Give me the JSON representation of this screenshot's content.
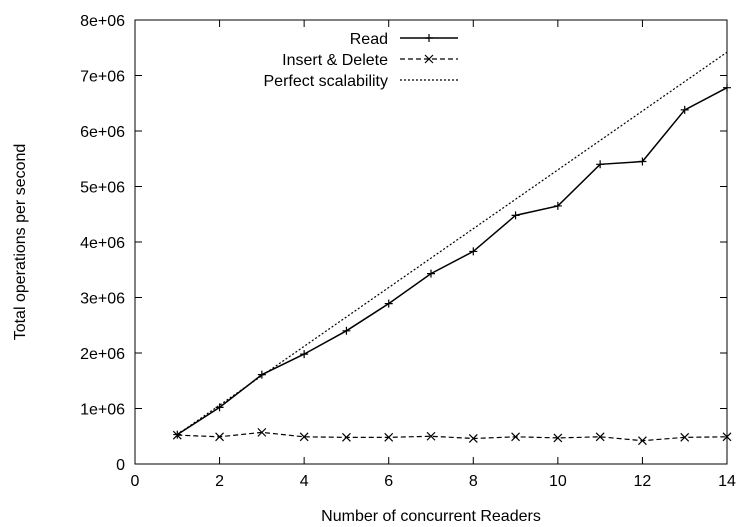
{
  "chart_data": {
    "type": "line",
    "title": "",
    "xlabel": "Number of concurrent Readers",
    "ylabel": "Total operations per second",
    "xlim": [
      0,
      14
    ],
    "ylim": [
      0,
      8000000
    ],
    "xticks": [
      0,
      2,
      4,
      6,
      8,
      10,
      12,
      14
    ],
    "xtick_labels": [
      "0",
      "2",
      "4",
      "6",
      "8",
      "10",
      "12",
      "14"
    ],
    "yticks": [
      0,
      1000000,
      2000000,
      3000000,
      4000000,
      5000000,
      6000000,
      7000000,
      8000000
    ],
    "ytick_labels": [
      "0",
      "1e+06",
      "2e+06",
      "3e+06",
      "4e+06",
      "5e+06",
      "6e+06",
      "7e+06",
      "8e+06"
    ],
    "grid": false,
    "legend_position": "top-left",
    "series": [
      {
        "name": "Read",
        "style": "solid",
        "marker": "plus",
        "color": "#000000",
        "x": [
          1,
          2,
          3,
          4,
          5,
          6,
          7,
          8,
          9,
          10,
          11,
          12,
          13,
          14
        ],
        "values": [
          530000,
          1020000,
          1610000,
          1980000,
          2400000,
          2890000,
          3430000,
          3830000,
          4480000,
          4650000,
          5400000,
          5450000,
          6380000,
          6780000
        ]
      },
      {
        "name": "Insert & Delete",
        "style": "dashed",
        "marker": "x",
        "color": "#000000",
        "x": [
          1,
          2,
          3,
          4,
          5,
          6,
          7,
          8,
          9,
          10,
          11,
          12,
          13,
          14
        ],
        "values": [
          520000,
          490000,
          570000,
          490000,
          480000,
          480000,
          500000,
          460000,
          490000,
          470000,
          490000,
          420000,
          480000,
          490000
        ]
      },
      {
        "name": "Perfect scalability",
        "style": "dotted",
        "marker": "none",
        "color": "#000000",
        "x": [
          1,
          14
        ],
        "values": [
          530000,
          7420000
        ]
      }
    ]
  }
}
